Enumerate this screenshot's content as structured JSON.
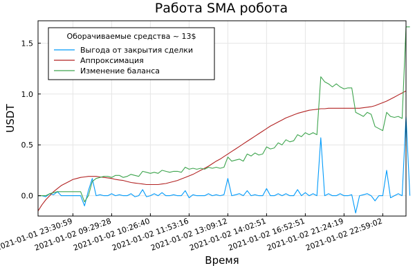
{
  "chart_data": {
    "type": "line",
    "title": "Работа SMA робота",
    "xlabel": "Время",
    "ylabel": "USDT",
    "x_tick_labels": [
      "2021-01-01 23:30:59",
      "2021-01-02 09:29:28",
      "2021-01-02 10:26:40",
      "2021-01-02 11:53:16",
      "2021-01-02 13:09:12",
      "2021-01-02 14:02:51",
      "2021-01-02 16:52:51",
      "2021-01-02 21:24:19",
      "2021-01-02 22:59:02"
    ],
    "x_tick_positions": [
      10,
      20,
      30,
      40,
      50,
      60,
      70,
      80,
      90
    ],
    "xlim": [
      1,
      96
    ],
    "ylim": [
      -0.2,
      1.72
    ],
    "y_ticks": [
      0.0,
      0.5,
      1.0,
      1.5
    ],
    "y_tick_labels": [
      "0.0",
      "0.5",
      "1.0",
      "1.5"
    ],
    "grid": true,
    "legend": {
      "title": "Оборачиваемые средства ~ 13$",
      "placement": "top-left"
    },
    "series": [
      {
        "name": "Выгода от закрытия сделки",
        "color": "#009AFA",
        "values": [
          0,
          0,
          -0.01,
          0.02,
          0.01,
          0.04,
          0,
          0,
          0,
          0,
          0,
          0,
          -0.1,
          0.05,
          0.17,
          0.0,
          0.01,
          0.0,
          0.0,
          0.02,
          0.0,
          0.01,
          0.0,
          0.0,
          0.02,
          -0.01,
          0.0,
          0.06,
          -0.01,
          0.0,
          0.02,
          0.0,
          0.03,
          0.0,
          0.0,
          0.01,
          0.0,
          0.0,
          0.05,
          -0.02,
          0.01,
          0.0,
          0.0,
          0.0,
          0.02,
          0.0,
          0.01,
          0.0,
          0.01,
          0.17,
          0.0,
          0.01,
          0.02,
          0.0,
          0.05,
          0.0,
          0.01,
          0.0,
          0.0,
          0.07,
          0.0,
          0.0,
          0.02,
          0.0,
          0.02,
          0.0,
          0.0,
          0.06,
          0.0,
          0.03,
          0.0,
          0.02,
          0.0,
          0.57,
          0.0,
          0.02,
          0.0,
          0.0,
          0.02,
          0.0,
          0.0,
          0.01,
          -0.17,
          0.0,
          0.01,
          0.02,
          0.0,
          -0.05,
          0.0,
          0.0,
          0.25,
          -0.02,
          0.0,
          0.02,
          0.0,
          0.78,
          0.0
        ]
      },
      {
        "name": "Аппроксимация",
        "color": "#B22222",
        "values": [
          -0.15,
          -0.09,
          -0.04,
          0.0,
          0.04,
          0.07,
          0.1,
          0.12,
          0.14,
          0.16,
          0.17,
          0.18,
          0.185,
          0.19,
          0.19,
          0.19,
          0.185,
          0.18,
          0.175,
          0.17,
          0.16,
          0.155,
          0.15,
          0.14,
          0.13,
          0.125,
          0.12,
          0.115,
          0.11,
          0.11,
          0.11,
          0.11,
          0.115,
          0.12,
          0.13,
          0.14,
          0.15,
          0.165,
          0.18,
          0.195,
          0.21,
          0.23,
          0.25,
          0.27,
          0.29,
          0.315,
          0.34,
          0.36,
          0.385,
          0.41,
          0.435,
          0.46,
          0.485,
          0.51,
          0.535,
          0.56,
          0.585,
          0.61,
          0.635,
          0.66,
          0.685,
          0.705,
          0.725,
          0.745,
          0.765,
          0.78,
          0.795,
          0.81,
          0.82,
          0.83,
          0.84,
          0.845,
          0.85,
          0.855,
          0.855,
          0.86,
          0.86,
          0.86,
          0.86,
          0.86,
          0.86,
          0.86,
          0.86,
          0.86,
          0.865,
          0.87,
          0.875,
          0.885,
          0.9,
          0.915,
          0.93,
          0.95,
          0.97,
          0.99,
          1.01,
          1.03
        ]
      },
      {
        "name": "Изменение баланса",
        "color": "#3DA44D",
        "values": [
          0,
          0.0,
          0.0,
          0.02,
          0.03,
          0.04,
          0.04,
          0.04,
          0.04,
          0.04,
          0.04,
          0.04,
          -0.06,
          0.0,
          0.14,
          0.17,
          0.18,
          0.19,
          0.19,
          0.18,
          0.2,
          0.2,
          0.18,
          0.19,
          0.21,
          0.2,
          0.19,
          0.24,
          0.23,
          0.22,
          0.23,
          0.22,
          0.25,
          0.24,
          0.23,
          0.24,
          0.24,
          0.23,
          0.28,
          0.26,
          0.27,
          0.26,
          0.27,
          0.26,
          0.28,
          0.27,
          0.28,
          0.27,
          0.28,
          0.38,
          0.34,
          0.35,
          0.36,
          0.34,
          0.41,
          0.39,
          0.42,
          0.4,
          0.41,
          0.48,
          0.46,
          0.47,
          0.52,
          0.5,
          0.55,
          0.53,
          0.54,
          0.6,
          0.58,
          0.62,
          0.6,
          0.62,
          0.6,
          1.17,
          1.12,
          1.1,
          1.07,
          1.1,
          1.07,
          1.05,
          1.06,
          1.06,
          0.82,
          0.8,
          0.78,
          0.82,
          0.8,
          0.68,
          0.66,
          0.64,
          0.82,
          0.78,
          0.77,
          0.78,
          0.76,
          1.66,
          1.66
        ]
      }
    ]
  }
}
